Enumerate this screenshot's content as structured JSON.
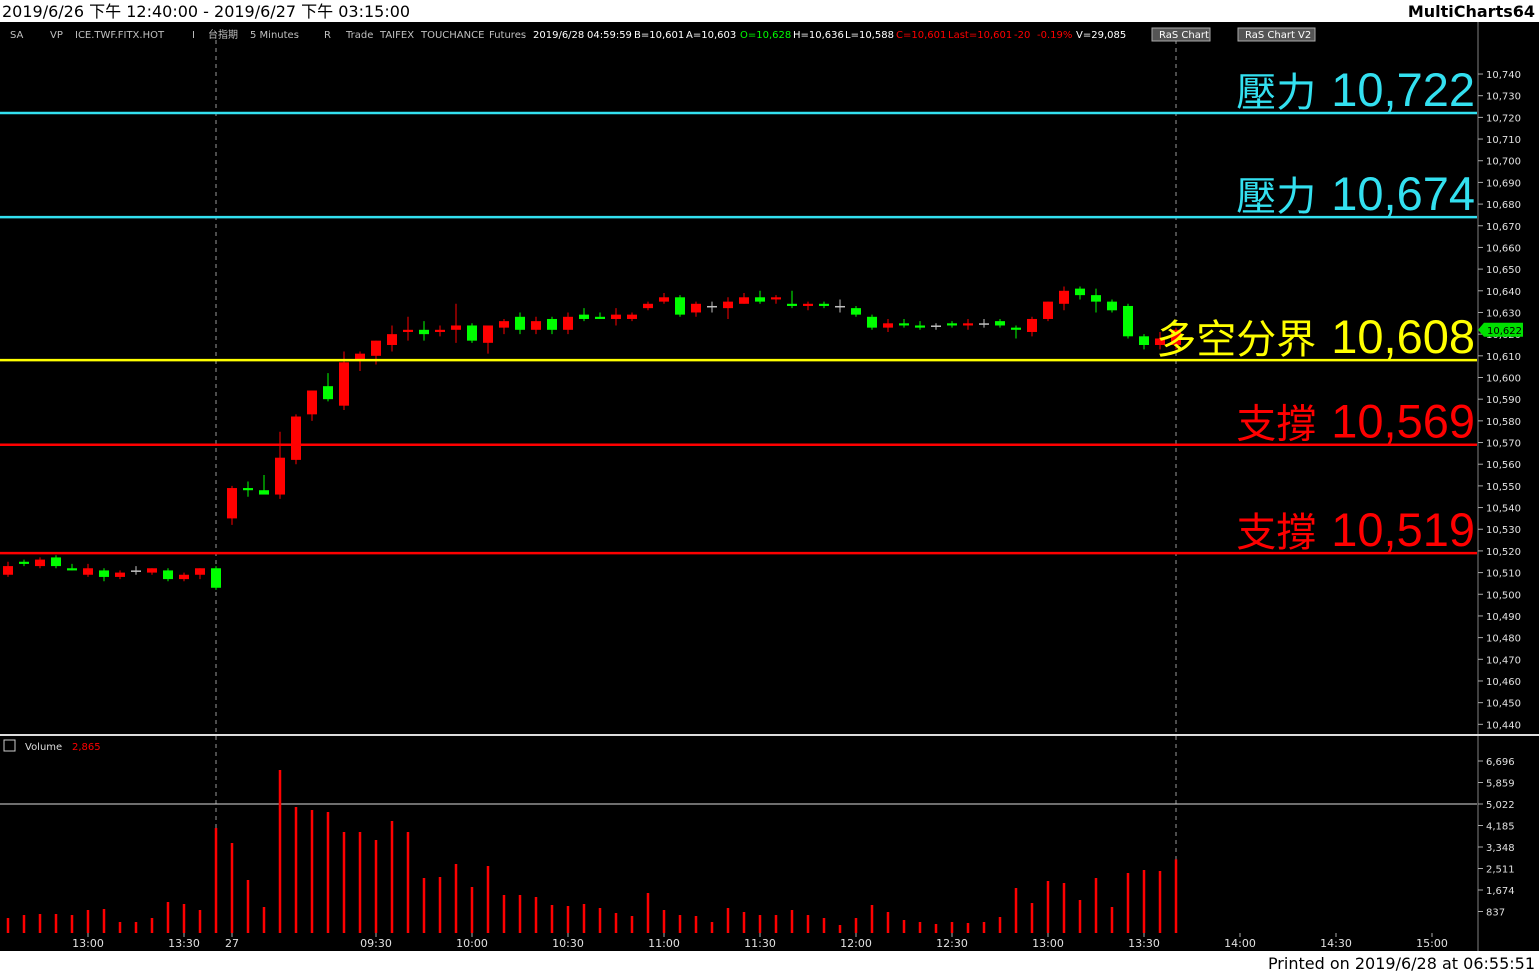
{
  "header": {
    "range": "2019/6/26 下午 12:40:00 - 2019/6/27 下午 03:15:00",
    "app": "MultiCharts64"
  },
  "toolbar": [
    {
      "text": "SA",
      "color": "#c0c0c0"
    },
    {
      "text": "VP",
      "color": "#c0c0c0"
    },
    {
      "text": "ICE.TWF.FITX.HOT",
      "color": "#c0c0c0"
    },
    {
      "text": "I",
      "color": "#c0c0c0"
    },
    {
      "text": "台指期",
      "color": "#c0c0c0"
    },
    {
      "text": "5 Minutes",
      "color": "#c0c0c0"
    },
    {
      "text": "R",
      "color": "#c0c0c0"
    },
    {
      "text": "Trade",
      "color": "#c0c0c0"
    },
    {
      "text": "TAIFEX",
      "color": "#c0c0c0"
    },
    {
      "text": "TOUCHANCE",
      "color": "#c0c0c0"
    },
    {
      "text": "Futures",
      "color": "#c0c0c0"
    },
    {
      "text": "2019/6/28",
      "color": "#ffffff"
    },
    {
      "text": "04:59:59",
      "color": "#ffffff"
    },
    {
      "text": "B=10,601",
      "color": "#ffffff"
    },
    {
      "text": "A=10,603",
      "color": "#ffffff"
    },
    {
      "text": "O=10,628",
      "color": "#00ff00"
    },
    {
      "text": "H=10,636",
      "color": "#ffffff"
    },
    {
      "text": "L=10,588",
      "color": "#ffffff"
    },
    {
      "text": "C=10,601",
      "color": "#ff0000"
    },
    {
      "text": "Last=10,601",
      "color": "#ff0000"
    },
    {
      "text": "-20",
      "color": "#ff0000"
    },
    {
      "text": "-0.19%",
      "color": "#ff0000"
    },
    {
      "text": "V=29,085",
      "color": "#ffffff"
    },
    {
      "text": "RaS Chart",
      "color": "#ffffff"
    },
    {
      "text": "RaS Chart V2",
      "color": "#ffffff"
    }
  ],
  "chart_data": [
    {
      "type": "candlestick",
      "up_color": "#ff0000",
      "down_color": "#00ff00",
      "flat_color": "#c0c0c0",
      "open": [
        10509,
        10515,
        10513,
        10517,
        10512,
        10509,
        10511,
        10508,
        10511,
        10510,
        10511,
        10507,
        10509,
        10512,
        10535,
        10549,
        10548,
        10546,
        10562,
        10583,
        10596,
        10587,
        10608,
        10610,
        10615,
        10621,
        10622,
        10621,
        10622,
        10624,
        10616,
        10623,
        10628,
        10622,
        10627,
        10622,
        10629,
        10628,
        10627,
        10627,
        10632,
        10635,
        10637,
        10630,
        10633,
        10632,
        10634,
        10637,
        10636,
        10634,
        10633,
        10634,
        10633,
        10632,
        10628,
        10623,
        10625,
        10624,
        10624,
        10625,
        10624,
        10625,
        10626,
        10623,
        10621,
        10627,
        10634,
        10641,
        10638,
        10635,
        10633,
        10619,
        10615,
        10615
      ],
      "high": [
        10515,
        10516,
        10517,
        10518,
        10514,
        10514,
        10512,
        10511,
        10513,
        10512,
        10512,
        10510,
        10512,
        10513,
        10550,
        10552,
        10555,
        10575,
        10583,
        10594,
        10602,
        10612,
        10612,
        10617,
        10624,
        10628,
        10626,
        10624,
        10634,
        10625,
        10624,
        10627,
        10630,
        10628,
        10628,
        10630,
        10632,
        10630,
        10632,
        10630,
        10635,
        10639,
        10638,
        10635,
        10635,
        10637,
        10639,
        10640,
        10638,
        10640,
        10635,
        10635,
        10636,
        10633,
        10629,
        10627,
        10627,
        10626,
        10625,
        10626,
        10627,
        10627,
        10627,
        10624,
        10628,
        10635,
        10642,
        10642,
        10641,
        10636,
        10634,
        10620,
        10621,
        10623
      ],
      "low": [
        10508,
        10513,
        10512,
        10512,
        10511,
        10508,
        10506,
        10507,
        10509,
        10509,
        10506,
        10506,
        10507,
        10502,
        10532,
        10545,
        10546,
        10544,
        10560,
        10580,
        10589,
        10585,
        10603,
        10606,
        10612,
        10617,
        10617,
        10619,
        10616,
        10616,
        10611,
        10620,
        10620,
        10620,
        10620,
        10620,
        10626,
        10627,
        10624,
        10626,
        10631,
        10634,
        10628,
        10628,
        10630,
        10627,
        10634,
        10634,
        10634,
        10632,
        10631,
        10632,
        10630,
        10628,
        10622,
        10621,
        10623,
        10622,
        10622,
        10623,
        10622,
        10623,
        10623,
        10618,
        10619,
        10626,
        10631,
        10636,
        10630,
        10630,
        10618,
        10613,
        10613,
        10613
      ],
      "close": [
        10513,
        10514,
        10516,
        10513,
        10511,
        10512,
        10508,
        10510,
        10511,
        10512,
        10507,
        10509,
        10512,
        10503,
        10549,
        10548,
        10546,
        10563,
        10582,
        10594,
        10590,
        10607,
        10611,
        10617,
        10620,
        10622,
        10620,
        10622,
        10624,
        10617,
        10624,
        10626,
        10622,
        10626,
        10622,
        10628,
        10627,
        10627,
        10629,
        10629,
        10634,
        10637,
        10629,
        10634,
        10633,
        10635,
        10637,
        10635,
        10637,
        10633,
        10634,
        10633,
        10633,
        10629,
        10623,
        10625,
        10624,
        10623,
        10624,
        10624,
        10625,
        10625,
        10624,
        10622,
        10627,
        10635,
        10640,
        10638,
        10635,
        10631,
        10619,
        10615,
        10618,
        10622
      ],
      "ylim": [
        10436,
        10764
      ],
      "yticks": [
        {
          "value": 10440,
          "label": "10,440"
        },
        {
          "value": 10450,
          "label": "10,450"
        },
        {
          "value": 10460,
          "label": "10,460"
        },
        {
          "value": 10470,
          "label": "10,470"
        },
        {
          "value": 10480,
          "label": "10,480"
        },
        {
          "value": 10490,
          "label": "10,490"
        },
        {
          "value": 10500,
          "label": "10,500"
        },
        {
          "value": 10510,
          "label": "10,510"
        },
        {
          "value": 10520,
          "label": "10,520"
        },
        {
          "value": 10530,
          "label": "10,530"
        },
        {
          "value": 10540,
          "label": "10,540"
        },
        {
          "value": 10550,
          "label": "10,550"
        },
        {
          "value": 10560,
          "label": "10,560"
        },
        {
          "value": 10570,
          "label": "10,570"
        },
        {
          "value": 10580,
          "label": "10,580"
        },
        {
          "value": 10590,
          "label": "10,590"
        },
        {
          "value": 10600,
          "label": "10,600"
        },
        {
          "value": 10610,
          "label": "10,610"
        },
        {
          "value": 10620,
          "label": "10,620"
        },
        {
          "value": 10630,
          "label": "10,630"
        },
        {
          "value": 10640,
          "label": "10,640"
        },
        {
          "value": 10650,
          "label": "10,650"
        },
        {
          "value": 10660,
          "label": "10,660"
        },
        {
          "value": 10670,
          "label": "10,670"
        },
        {
          "value": 10680,
          "label": "10,680"
        },
        {
          "value": 10690,
          "label": "10,690"
        },
        {
          "value": 10700,
          "label": "10,700"
        },
        {
          "value": 10710,
          "label": "10,710"
        },
        {
          "value": 10720,
          "label": "10,720"
        },
        {
          "value": 10730,
          "label": "10,730"
        },
        {
          "value": 10740,
          "label": "10,740"
        }
      ],
      "levels": [
        {
          "name": "壓力",
          "value": 10722,
          "value_label": "10,722",
          "color": "#33e0f0"
        },
        {
          "name": "壓力",
          "value": 10674,
          "value_label": "10,674",
          "color": "#33e0f0"
        },
        {
          "name": "多空分界",
          "value": 10608,
          "value_label": "10,608",
          "color": "#ffff00"
        },
        {
          "name": "支撐",
          "value": 10569,
          "value_label": "10,569",
          "color": "#ff0000"
        },
        {
          "name": "支撐",
          "value": 10519,
          "value_label": "10,519",
          "color": "#ff0000"
        }
      ],
      "last_price": {
        "value": 10622,
        "label": "10,622",
        "color": "#00e000"
      }
    },
    {
      "type": "bar",
      "name": "Volume",
      "last_value": 2865,
      "last_label": "2,865",
      "color": "#ff0000",
      "hline": 5022,
      "categories": [
        null,
        null,
        null,
        null,
        null,
        "13:00",
        null,
        null,
        null,
        null,
        null,
        "13:30",
        null,
        null,
        "27",
        null,
        null,
        null,
        null,
        null,
        null,
        null,
        null,
        "09:30",
        null,
        null,
        null,
        null,
        null,
        "10:00",
        null,
        null,
        null,
        null,
        null,
        "10:30",
        null,
        null,
        null,
        null,
        null,
        "11:00",
        null,
        null,
        null,
        null,
        null,
        "11:30",
        null,
        null,
        null,
        null,
        null,
        "12:00",
        null,
        null,
        null,
        null,
        null,
        "12:30",
        null,
        null,
        null,
        null,
        null,
        "13:00",
        null,
        null,
        null,
        null,
        null,
        "13:30",
        null,
        null,
        null,
        null,
        null,
        "14:00",
        null,
        null,
        null,
        null,
        null,
        "14:30",
        null,
        null,
        null,
        null,
        null,
        "15:00",
        null,
        null
      ],
      "values": [
        584,
        700,
        740,
        740,
        700,
        895,
        934,
        428,
        428,
        584,
        1207,
        1129,
        895,
        4088,
        3504,
        2063,
        1012,
        6346,
        4905,
        4788,
        4710,
        3932,
        3932,
        3620,
        4360,
        3932,
        2141,
        2180,
        2686,
        1791,
        2608,
        1480,
        1480,
        1402,
        1090,
        1051,
        1129,
        973,
        778,
        662,
        1557,
        895,
        700,
        662,
        428,
        973,
        817,
        700,
        700,
        895,
        700,
        584,
        311,
        584,
        1090,
        817,
        506,
        428,
        350,
        428,
        389,
        428,
        623,
        1752,
        1168,
        2024,
        1946,
        1285,
        2141,
        1012,
        2336,
        2452,
        2414,
        2865,
        null,
        null,
        null,
        null,
        null,
        null,
        null,
        null,
        null,
        null,
        null,
        null,
        null,
        null,
        null,
        null,
        null,
        null
      ],
      "ylim": [
        0,
        7630
      ],
      "yticks": [
        837,
        {
          "value": 1674,
          "label": "1,674"
        },
        {
          "value": 2511,
          "label": "2,511"
        },
        {
          "value": 3348,
          "label": "3,348"
        },
        {
          "value": 4185,
          "label": "4,185"
        },
        {
          "value": 5022,
          "label": "5,022"
        },
        {
          "value": 5859,
          "label": "5,859"
        },
        {
          "value": 6696,
          "label": "6,696"
        }
      ]
    }
  ],
  "footer": {
    "printed": "Printed on 2019/6/28 at 06:55:51"
  }
}
